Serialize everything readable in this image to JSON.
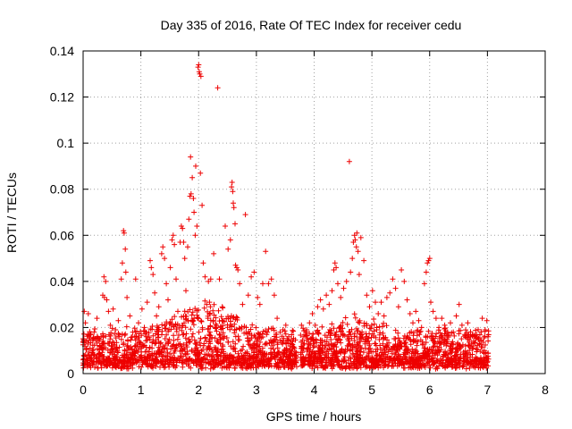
{
  "chart_data": {
    "type": "scatter",
    "title": "Day 335 of 2016, Rate Of TEC Index for receiver cedu",
    "xlabel": "GPS time / hours",
    "ylabel": "ROTI / TECUs",
    "xlim": [
      0,
      8
    ],
    "ylim": [
      0,
      0.14
    ],
    "xticks": [
      "0",
      "1",
      "2",
      "3",
      "4",
      "5",
      "6",
      "7",
      "8"
    ],
    "yticks": [
      "0",
      "0.02",
      "0.04",
      "0.06",
      "0.08",
      "0.1",
      "0.12",
      "0.14"
    ],
    "grid": true,
    "marker": "+",
    "color": "#ee0000",
    "series": [
      {
        "name": "ROTI",
        "points": [
          [
            0.02,
            0.027
          ],
          [
            0.04,
            0.022
          ],
          [
            0.06,
            0.014
          ],
          [
            0.09,
            0.026
          ],
          [
            0.12,
            0.011
          ],
          [
            0.16,
            0.009
          ],
          [
            0.19,
            0.018
          ],
          [
            0.24,
            0.024
          ],
          [
            0.28,
            0.007
          ],
          [
            0.31,
            0.016
          ],
          [
            0.34,
            0.034
          ],
          [
            0.36,
            0.042
          ],
          [
            0.37,
            0.033
          ],
          [
            0.39,
            0.04
          ],
          [
            0.41,
            0.032
          ],
          [
            0.44,
            0.027
          ],
          [
            0.47,
            0.021
          ],
          [
            0.52,
            0.028
          ],
          [
            0.56,
            0.019
          ],
          [
            0.61,
            0.023
          ],
          [
            0.66,
            0.041
          ],
          [
            0.68,
            0.048
          ],
          [
            0.7,
            0.062
          ],
          [
            0.71,
            0.061
          ],
          [
            0.73,
            0.054
          ],
          [
            0.74,
            0.044
          ],
          [
            0.76,
            0.033
          ],
          [
            0.81,
            0.025
          ],
          [
            0.86,
            0.018
          ],
          [
            0.91,
            0.041
          ],
          [
            0.96,
            0.022
          ],
          [
            1.02,
            0.028
          ],
          [
            1.06,
            0.02
          ],
          [
            1.11,
            0.031
          ],
          [
            1.16,
            0.049
          ],
          [
            1.18,
            0.046
          ],
          [
            1.21,
            0.043
          ],
          [
            1.24,
            0.035
          ],
          [
            1.27,
            0.025
          ],
          [
            1.31,
            0.029
          ],
          [
            1.36,
            0.052
          ],
          [
            1.38,
            0.055
          ],
          [
            1.41,
            0.05
          ],
          [
            1.44,
            0.039
          ],
          [
            1.47,
            0.032
          ],
          [
            1.51,
            0.046
          ],
          [
            1.54,
            0.058
          ],
          [
            1.56,
            0.06
          ],
          [
            1.58,
            0.056
          ],
          [
            1.61,
            0.041
          ],
          [
            1.64,
            0.027
          ],
          [
            1.68,
            0.057
          ],
          [
            1.7,
            0.064
          ],
          [
            1.72,
            0.063
          ],
          [
            1.74,
            0.057
          ],
          [
            1.76,
            0.05
          ],
          [
            1.78,
            0.036
          ],
          [
            1.81,
            0.055
          ],
          [
            1.83,
            0.067
          ],
          [
            1.85,
            0.077
          ],
          [
            1.86,
            0.094
          ],
          [
            1.87,
            0.078
          ],
          [
            1.89,
            0.085
          ],
          [
            1.91,
            0.076
          ],
          [
            1.92,
            0.07
          ],
          [
            1.94,
            0.06
          ],
          [
            1.95,
            0.09
          ],
          [
            1.97,
            0.064
          ],
          [
            1.99,
            0.133
          ],
          [
            2.0,
            0.134
          ],
          [
            2.01,
            0.131
          ],
          [
            2.02,
            0.13
          ],
          [
            2.04,
            0.129
          ],
          [
            2.03,
            0.087
          ],
          [
            2.06,
            0.073
          ],
          [
            2.08,
            0.048
          ],
          [
            2.11,
            0.042
          ],
          [
            2.14,
            0.03
          ],
          [
            2.17,
            0.04
          ],
          [
            2.21,
            0.041
          ],
          [
            2.26,
            0.052
          ],
          [
            2.33,
            0.124
          ],
          [
            2.36,
            0.041
          ],
          [
            2.41,
            0.029
          ],
          [
            2.46,
            0.064
          ],
          [
            2.51,
            0.054
          ],
          [
            2.55,
            0.058
          ],
          [
            2.57,
            0.081
          ],
          [
            2.58,
            0.083
          ],
          [
            2.59,
            0.079
          ],
          [
            2.6,
            0.074
          ],
          [
            2.61,
            0.072
          ],
          [
            2.63,
            0.065
          ],
          [
            2.64,
            0.047
          ],
          [
            2.66,
            0.046
          ],
          [
            2.68,
            0.045
          ],
          [
            2.71,
            0.039
          ],
          [
            2.76,
            0.03
          ],
          [
            2.81,
            0.069
          ],
          [
            2.86,
            0.034
          ],
          [
            2.91,
            0.042
          ],
          [
            2.96,
            0.044
          ],
          [
            3.02,
            0.033
          ],
          [
            3.06,
            0.03
          ],
          [
            3.11,
            0.039
          ],
          [
            3.16,
            0.053
          ],
          [
            3.21,
            0.039
          ],
          [
            3.26,
            0.041
          ],
          [
            3.31,
            0.034
          ],
          [
            3.36,
            0.024
          ],
          [
            3.41,
            0.018
          ],
          [
            3.46,
            0.019
          ],
          [
            3.51,
            0.021
          ],
          [
            3.56,
            0.016
          ],
          [
            3.61,
            0.013
          ],
          [
            3.66,
            0.011
          ],
          [
            3.69,
            0.009
          ],
          [
            3.78,
            0.021
          ],
          [
            3.82,
            0.016
          ],
          [
            3.87,
            0.019
          ],
          [
            3.92,
            0.022
          ],
          [
            3.97,
            0.026
          ],
          [
            4.02,
            0.021
          ],
          [
            4.06,
            0.029
          ],
          [
            4.11,
            0.032
          ],
          [
            4.16,
            0.028
          ],
          [
            4.21,
            0.034
          ],
          [
            4.26,
            0.03
          ],
          [
            4.31,
            0.036
          ],
          [
            4.34,
            0.045
          ],
          [
            4.36,
            0.048
          ],
          [
            4.38,
            0.046
          ],
          [
            4.41,
            0.039
          ],
          [
            4.46,
            0.033
          ],
          [
            4.51,
            0.037
          ],
          [
            4.56,
            0.04
          ],
          [
            4.61,
            0.092
          ],
          [
            4.63,
            0.044
          ],
          [
            4.66,
            0.05
          ],
          [
            4.68,
            0.057
          ],
          [
            4.7,
            0.06
          ],
          [
            4.71,
            0.058
          ],
          [
            4.73,
            0.055
          ],
          [
            4.74,
            0.061
          ],
          [
            4.76,
            0.053
          ],
          [
            4.78,
            0.043
          ],
          [
            4.81,
            0.059
          ],
          [
            4.86,
            0.049
          ],
          [
            4.91,
            0.034
          ],
          [
            4.96,
            0.029
          ],
          [
            5.01,
            0.036
          ],
          [
            5.06,
            0.031
          ],
          [
            5.11,
            0.026
          ],
          [
            5.16,
            0.031
          ],
          [
            5.21,
            0.025
          ],
          [
            5.26,
            0.033
          ],
          [
            5.31,
            0.035
          ],
          [
            5.36,
            0.041
          ],
          [
            5.41,
            0.037
          ],
          [
            5.46,
            0.029
          ],
          [
            5.51,
            0.045
          ],
          [
            5.56,
            0.04
          ],
          [
            5.61,
            0.032
          ],
          [
            5.66,
            0.026
          ],
          [
            5.71,
            0.022
          ],
          [
            5.76,
            0.027
          ],
          [
            5.81,
            0.023
          ],
          [
            5.86,
            0.02
          ],
          [
            5.91,
            0.039
          ],
          [
            5.94,
            0.044
          ],
          [
            5.96,
            0.048
          ],
          [
            5.98,
            0.049
          ],
          [
            6.0,
            0.05
          ],
          [
            6.02,
            0.031
          ],
          [
            6.06,
            0.027
          ],
          [
            6.11,
            0.024
          ],
          [
            6.16,
            0.02
          ],
          [
            6.21,
            0.024
          ],
          [
            6.26,
            0.021
          ],
          [
            6.31,
            0.018
          ],
          [
            6.36,
            0.022
          ],
          [
            6.41,
            0.018
          ],
          [
            6.46,
            0.025
          ],
          [
            6.51,
            0.03
          ],
          [
            6.56,
            0.021
          ],
          [
            6.61,
            0.017
          ],
          [
            6.66,
            0.022
          ],
          [
            6.71,
            0.016
          ],
          [
            6.76,
            0.014
          ],
          [
            6.81,
            0.017
          ],
          [
            6.86,
            0.013
          ],
          [
            6.91,
            0.024
          ],
          [
            6.96,
            0.019
          ],
          [
            6.99,
            0.023
          ],
          [
            7.01,
            0.016
          ]
        ]
      }
    ]
  }
}
